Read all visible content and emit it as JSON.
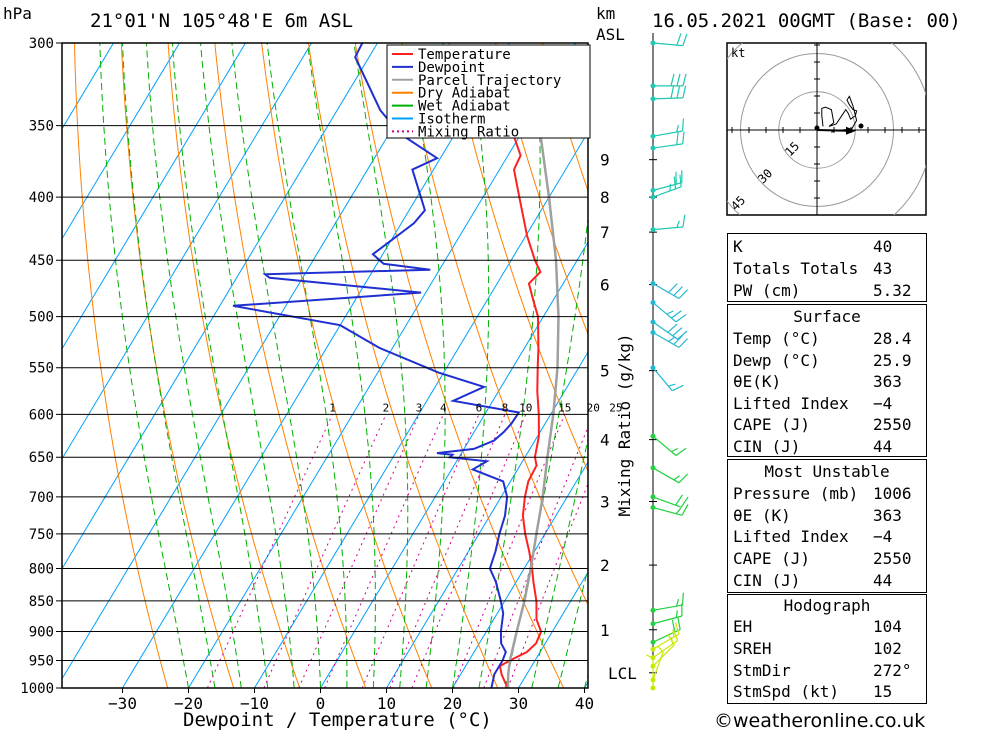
{
  "header": {
    "pressure_unit": "hPa",
    "location": "21°01'N  105°48'E  6m  ASL",
    "km_label": "km",
    "asl_label": "ASL",
    "datetime": "16.05.2021  00GMT  (Base: 00)"
  },
  "chart_data": {
    "type": "line",
    "title": "Skew-T log-P sounding",
    "xlabel": "Dewpoint / Temperature (°C)",
    "ylabel": "hPa",
    "mixing_ratio_axis_label": "Mixing Ratio (g/kg)",
    "x_ticks": [
      -30,
      -20,
      -10,
      0,
      10,
      20,
      30,
      40
    ],
    "x_tick_labels": [
      "−30",
      "−20",
      "−10",
      "0",
      "10",
      "20",
      "30",
      "40"
    ],
    "pressure_levels": [
      300,
      350,
      400,
      450,
      500,
      550,
      600,
      650,
      700,
      750,
      800,
      850,
      900,
      950,
      1000
    ],
    "height_km_ticks": [
      {
        "label": "9",
        "p": 373
      },
      {
        "label": "8",
        "p": 400
      },
      {
        "label": "7",
        "p": 427
      },
      {
        "label": "6",
        "p": 471
      },
      {
        "label": "5",
        "p": 553
      },
      {
        "label": "4",
        "p": 629
      },
      {
        "label": "3",
        "p": 706
      },
      {
        "label": "2",
        "p": 795
      },
      {
        "label": "1",
        "p": 897
      },
      {
        "label": "LCL",
        "p": 972
      }
    ],
    "mixing_ratio_labels": [
      "1",
      "2",
      "3",
      "4",
      "6",
      "8",
      "10",
      "15",
      "20",
      "25"
    ],
    "mixing_ratio_values": [
      1,
      2,
      3,
      4,
      6,
      8,
      10,
      15,
      20,
      25
    ],
    "legend": [
      {
        "name": "Temperature",
        "color": "#ff2020",
        "dashed": false
      },
      {
        "name": "Dewpoint",
        "color": "#2030d0",
        "dashed": false
      },
      {
        "name": "Parcel Trajectory",
        "color": "#a0a0a0",
        "dashed": false
      },
      {
        "name": "Dry Adiabat",
        "color": "#ff8000",
        "dashed": false
      },
      {
        "name": "Wet Adiabat",
        "color": "#00b000",
        "dashed": false
      },
      {
        "name": "Isotherm",
        "color": "#00a0ff",
        "dashed": false
      },
      {
        "name": "Mixing Ratio",
        "color": "#d0008a",
        "dashed": true
      }
    ],
    "series": [
      {
        "name": "Temperature",
        "color": "#ff2020",
        "points": [
          [
            1000,
            28.4
          ],
          [
            990,
            27.5
          ],
          [
            975,
            26.2
          ],
          [
            960,
            25.2
          ],
          [
            950,
            26.2
          ],
          [
            935,
            28.0
          ],
          [
            920,
            28.6
          ],
          [
            900,
            28.3
          ],
          [
            880,
            26.5
          ],
          [
            850,
            24.8
          ],
          [
            820,
            22.6
          ],
          [
            800,
            21.2
          ],
          [
            775,
            19.2
          ],
          [
            750,
            17.0
          ],
          [
            725,
            15.0
          ],
          [
            700,
            13.6
          ],
          [
            680,
            12.7
          ],
          [
            660,
            12.5
          ],
          [
            650,
            11.5
          ],
          [
            625,
            10.2
          ],
          [
            600,
            8.2
          ],
          [
            575,
            5.9
          ],
          [
            550,
            3.8
          ],
          [
            530,
            2.1
          ],
          [
            500,
            -0.8
          ],
          [
            485,
            -3.0
          ],
          [
            470,
            -5.2
          ],
          [
            460,
            -4.5
          ],
          [
            450,
            -6.4
          ],
          [
            430,
            -9.8
          ],
          [
            400,
            -14.5
          ],
          [
            380,
            -17.8
          ],
          [
            370,
            -18.1
          ],
          [
            355,
            -21.3
          ],
          [
            345,
            -23.5
          ]
        ]
      },
      {
        "name": "Dewpoint",
        "color": "#2030d0",
        "points": [
          [
            1000,
            25.9
          ],
          [
            975,
            25.1
          ],
          [
            950,
            25.1
          ],
          [
            935,
            24.8
          ],
          [
            920,
            23.3
          ],
          [
            900,
            22.2
          ],
          [
            870,
            20.9
          ],
          [
            850,
            19.4
          ],
          [
            820,
            16.9
          ],
          [
            800,
            14.8
          ],
          [
            775,
            14.1
          ],
          [
            750,
            13.1
          ],
          [
            725,
            12.3
          ],
          [
            700,
            10.9
          ],
          [
            680,
            8.9
          ],
          [
            665,
            3.2
          ],
          [
            655,
            4.6
          ],
          [
            650,
            -1.4
          ],
          [
            647,
            -1.2
          ],
          [
            645,
            -3.7
          ],
          [
            640,
            1.5
          ],
          [
            630,
            3.8
          ],
          [
            620,
            4.5
          ],
          [
            610,
            4.9
          ],
          [
            598,
            5.0
          ],
          [
            585,
            -6.0
          ],
          [
            570,
            -2.6
          ],
          [
            555,
            -10.8
          ],
          [
            530,
            -22.0
          ],
          [
            508,
            -30.0
          ],
          [
            490,
            -48.0
          ],
          [
            478,
            -20.7
          ],
          [
            465,
            -45.0
          ],
          [
            462,
            -46.0
          ],
          [
            458,
            -21.4
          ],
          [
            453,
            -29.0
          ],
          [
            445,
            -31.5
          ],
          [
            420,
            -28.1
          ],
          [
            410,
            -27.6
          ],
          [
            380,
            -33.2
          ],
          [
            372,
            -30.5
          ],
          [
            355,
            -38.5
          ],
          [
            340,
            -43.5
          ],
          [
            308,
            -52.1
          ],
          [
            300,
            -52.3
          ]
        ]
      },
      {
        "name": "Parcel Trajectory",
        "color": "#a0a0a0",
        "points": [
          [
            1000,
            28.4
          ],
          [
            975,
            27.2
          ],
          [
            950,
            26.2
          ],
          [
            900,
            24.6
          ],
          [
            850,
            23.0
          ],
          [
            800,
            21.0
          ],
          [
            750,
            18.7
          ],
          [
            700,
            16.3
          ],
          [
            650,
            13.4
          ],
          [
            600,
            10.4
          ],
          [
            550,
            6.8
          ],
          [
            500,
            2.3
          ],
          [
            450,
            -3.2
          ],
          [
            400,
            -10.0
          ],
          [
            350,
            -18.0
          ]
        ]
      }
    ],
    "wind_barbs": [
      {
        "p": 300,
        "dir": 275,
        "spd": 20
      },
      {
        "p": 325,
        "dir": 270,
        "spd": 30
      },
      {
        "p": 333,
        "dir": 268,
        "spd": 30
      },
      {
        "p": 357,
        "dir": 260,
        "spd": 15
      },
      {
        "p": 365,
        "dir": 262,
        "spd": 20
      },
      {
        "p": 395,
        "dir": 255,
        "spd": 20
      },
      {
        "p": 400,
        "dir": 250,
        "spd": 25
      },
      {
        "p": 425,
        "dir": 265,
        "spd": 15
      },
      {
        "p": 470,
        "dir": 300,
        "spd": 30
      },
      {
        "p": 487,
        "dir": 310,
        "spd": 25
      },
      {
        "p": 505,
        "dir": 305,
        "spd": 30
      },
      {
        "p": 515,
        "dir": 300,
        "spd": 25
      },
      {
        "p": 550,
        "dir": 320,
        "spd": 15
      },
      {
        "p": 625,
        "dir": 310,
        "spd": 15
      },
      {
        "p": 663,
        "dir": 300,
        "spd": 15
      },
      {
        "p": 700,
        "dir": 290,
        "spd": 20
      },
      {
        "p": 714,
        "dir": 285,
        "spd": 15
      },
      {
        "p": 865,
        "dir": 260,
        "spd": 15
      },
      {
        "p": 887,
        "dir": 255,
        "spd": 15
      },
      {
        "p": 918,
        "dir": 245,
        "spd": 20
      },
      {
        "p": 930,
        "dir": 240,
        "spd": 15
      },
      {
        "p": 945,
        "dir": 235,
        "spd": 15
      },
      {
        "p": 960,
        "dir": 225,
        "spd": 10
      },
      {
        "p": 985,
        "dir": 200,
        "spd": 5
      },
      {
        "p": 1000,
        "dir": 180,
        "spd": 5
      }
    ],
    "hodograph": {
      "unit_label": "kt",
      "ring_labels": [
        "15",
        "30",
        "45"
      ],
      "ring_values": [
        15,
        30,
        45
      ],
      "storm_dir": 272,
      "storm_spd": 15,
      "points": [
        [
          5,
          3
        ],
        [
          4,
          12
        ],
        [
          4,
          18
        ],
        [
          7,
          19
        ],
        [
          12,
          17
        ],
        [
          14,
          6
        ],
        [
          10,
          3
        ],
        [
          16,
          5
        ],
        [
          20,
          11
        ],
        [
          24,
          17
        ],
        [
          26,
          14
        ],
        [
          28,
          9
        ],
        [
          32,
          12
        ],
        [
          33,
          16
        ],
        [
          30,
          17
        ],
        [
          27,
          21
        ],
        [
          25,
          25
        ],
        [
          27,
          28
        ],
        [
          30,
          20
        ],
        [
          33,
          8
        ],
        [
          29,
          1
        ],
        [
          21,
          0
        ],
        [
          15,
          0
        ],
        [
          12,
          -2
        ]
      ]
    }
  },
  "indices": {
    "top": [
      {
        "key": "K",
        "value": "40"
      },
      {
        "key": "Totals Totals",
        "value": "43"
      },
      {
        "key": "PW (cm)",
        "value": "5.32"
      }
    ],
    "surface_title": "Surface",
    "surface": [
      {
        "key": "Temp (°C)",
        "value": "28.4"
      },
      {
        "key": "Dewp (°C)",
        "value": "25.9"
      },
      {
        "key": "θE(K)",
        "value": "363"
      },
      {
        "key": "Lifted Index",
        "value": "−4"
      },
      {
        "key": "CAPE (J)",
        "value": "2550"
      },
      {
        "key": "CIN (J)",
        "value": "44"
      }
    ],
    "most_unstable_title": "Most Unstable",
    "most_unstable": [
      {
        "key": "Pressure (mb)",
        "value": "1006"
      },
      {
        "key": "θE (K)",
        "value": "363"
      },
      {
        "key": "Lifted Index",
        "value": "−4"
      },
      {
        "key": "CAPE (J)",
        "value": "2550"
      },
      {
        "key": "CIN (J)",
        "value": "44"
      }
    ],
    "hodograph_title": "Hodograph",
    "hodograph": [
      {
        "key": "EH",
        "value": "104"
      },
      {
        "key": "SREH",
        "value": "102"
      },
      {
        "key": "StmDir",
        "value": "272°"
      },
      {
        "key": "StmSpd (kt)",
        "value": "15"
      }
    ]
  },
  "footer": {
    "credit": "©weatheronline.co.uk"
  }
}
